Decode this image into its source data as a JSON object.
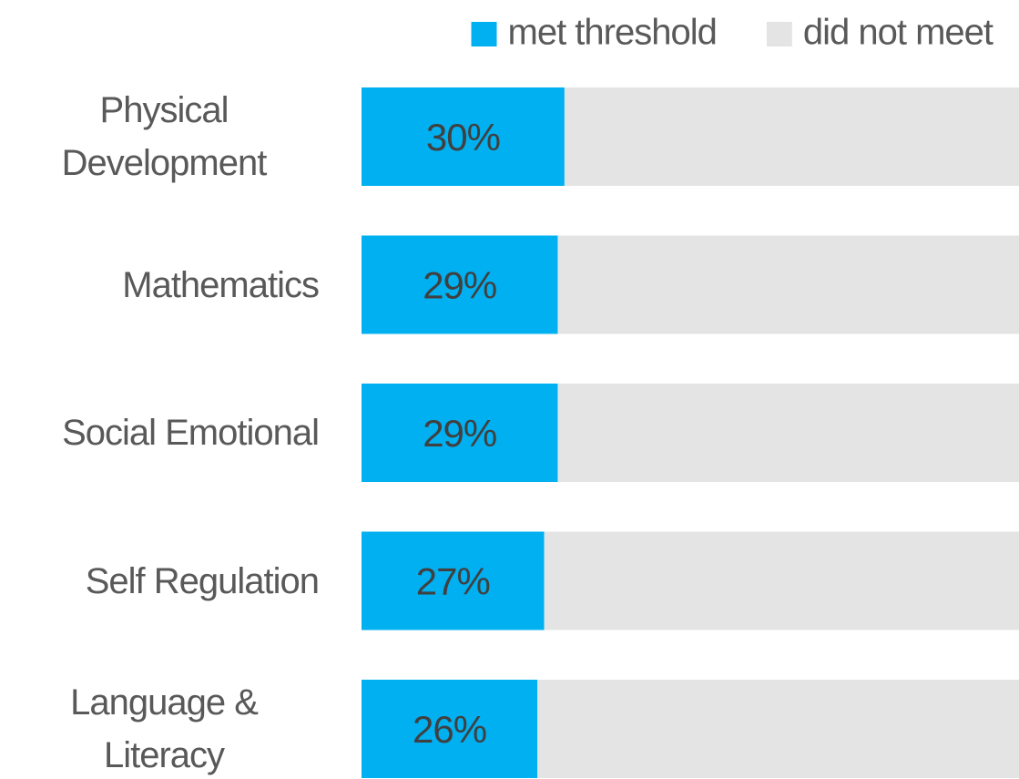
{
  "chart_data": {
    "type": "stacked-bar-horizontal",
    "categories": [
      "Physical Development",
      "Mathematics",
      "Social Emotional",
      "Self Regulation",
      "Language & Literacy"
    ],
    "series": [
      {
        "name": "met threshold",
        "color": "#00b0f0",
        "values": [
          30,
          29,
          29,
          27,
          26
        ],
        "value_labels": [
          "30%",
          "29%",
          "29%",
          "27%",
          "26%"
        ]
      },
      {
        "name": "did not meet",
        "color": "#e4e4e4",
        "values": [
          70,
          71,
          71,
          73,
          74
        ]
      }
    ],
    "xlim": [
      0,
      100
    ]
  }
}
